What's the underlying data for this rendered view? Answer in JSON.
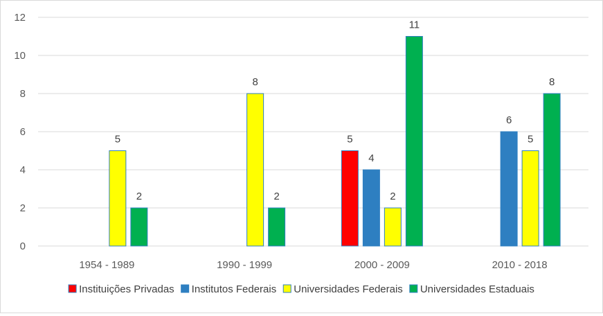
{
  "chart_data": {
    "type": "bar",
    "categories": [
      "1954 - 1989",
      "1990 - 1999",
      "2000 - 2009",
      "2010 - 2018"
    ],
    "series": [
      {
        "name": "Instituições Privadas",
        "color": "#ff0000",
        "values": [
          null,
          null,
          5,
          null
        ]
      },
      {
        "name": "Institutos Federais",
        "color": "#2e7fc1",
        "values": [
          null,
          null,
          4,
          6
        ]
      },
      {
        "name": "Universidades Federais",
        "color": "#ffff00",
        "values": [
          5,
          8,
          2,
          5
        ]
      },
      {
        "name": "Universidades Estaduais",
        "color": "#00b050",
        "values": [
          2,
          2,
          11,
          8
        ]
      }
    ],
    "ylim": [
      0,
      12
    ],
    "yticks": [
      "0",
      "2",
      "4",
      "6",
      "8",
      "10",
      "12"
    ],
    "grid": true,
    "legend_position": "bottom",
    "bar_outline_color": "#2e7fc1",
    "gridline_color": "#d9d9d9"
  }
}
